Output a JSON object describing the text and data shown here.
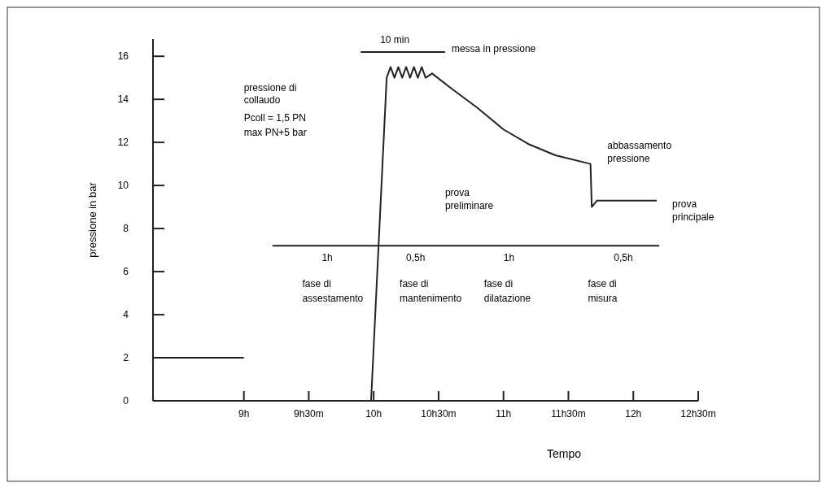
{
  "chart_data": {
    "type": "line",
    "xlabel": "Tempo",
    "ylabel": "pressione in bar",
    "xlim": [
      8.3,
      12.5
    ],
    "ylim": [
      0,
      16.8
    ],
    "xticks": [
      {
        "value": 9,
        "label": "9h"
      },
      {
        "value": 9.5,
        "label": "9h30m"
      },
      {
        "value": 10,
        "label": "10h"
      },
      {
        "value": 10.5,
        "label": "10h30m"
      },
      {
        "value": 11,
        "label": "11h"
      },
      {
        "value": 11.5,
        "label": "11h30m"
      },
      {
        "value": 12,
        "label": "12h"
      },
      {
        "value": 12.5,
        "label": "12h30m"
      }
    ],
    "yticks": [
      0,
      2,
      4,
      6,
      8,
      10,
      12,
      14,
      16
    ],
    "marker": "none",
    "line_style": "solid",
    "series": [
      {
        "color": "#222222",
        "x": [
          8.3,
          9.98,
          10.1,
          10.13,
          10.16,
          10.19,
          10.22,
          10.25,
          10.28,
          10.31,
          10.34,
          10.37,
          10.4,
          10.45,
          10.6,
          10.8,
          11.0,
          11.2,
          11.4,
          11.67,
          11.68,
          11.72,
          12.18
        ],
        "values": [
          0,
          0,
          15,
          15.5,
          15,
          15.5,
          15,
          15.5,
          15,
          15.5,
          15,
          15.5,
          15,
          15.2,
          14.5,
          13.6,
          12.6,
          11.9,
          11.4,
          11,
          9,
          9.3,
          9.3
        ]
      },
      {
        "color": "#222222",
        "x": [
          8.3,
          9.0
        ],
        "values": [
          2,
          2
        ]
      },
      {
        "color": "#222222",
        "x": [
          9.22,
          12.2
        ],
        "values": [
          7.2,
          7.2
        ]
      },
      {
        "color": "#222222",
        "x": [
          9.9,
          10.55
        ],
        "values": [
          16.2,
          16.2
        ]
      }
    ],
    "annotations": [
      "pressione di",
      "collaudo",
      "Pcoll = 1,5 PN",
      "max PN+5 bar",
      "10 min",
      "messa in pressione",
      "abbassamento",
      "pressione",
      "prova",
      "preliminare",
      "prova",
      "principale",
      "1h",
      "0,5h",
      "1h",
      "0,5h",
      "fase di",
      "assestamento",
      "fase di",
      "mantenimento",
      "fase di",
      "dilatazione",
      "fase di",
      "misura"
    ]
  }
}
